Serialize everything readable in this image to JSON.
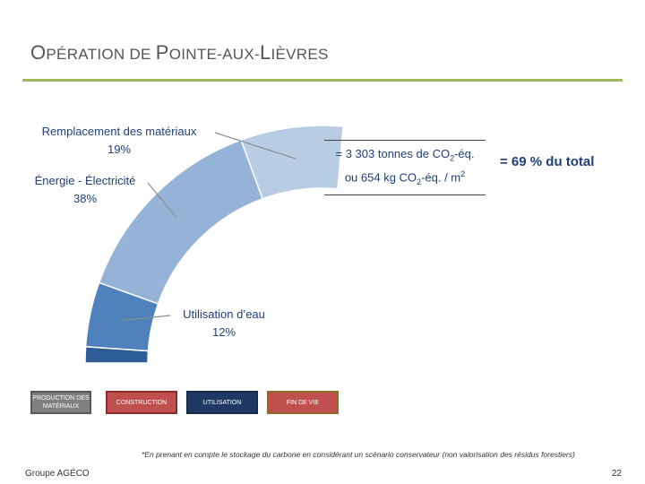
{
  "slide": {
    "title_first": "O",
    "title_rest_1": "PÉRATION DE ",
    "title_p": "P",
    "title_rest_2": "OINTE-AUX-",
    "title_l": "L",
    "title_rest_3": "IÈVRES"
  },
  "colors": {
    "accent_rule": "#9bbb59",
    "label_text": "#1f3f7a"
  },
  "chart_data": {
    "type": "donut-arc",
    "segments": [
      {
        "name": "Remplacement des  matériaux",
        "value": 19,
        "label": "19%",
        "color": "#b8cce4"
      },
      {
        "name": "Énergie - Électricité",
        "value": 38,
        "label": "38%",
        "color": "#95b3d7"
      },
      {
        "name": "Utilisation d’eau",
        "value": 12,
        "label": "12%",
        "color": "#4f81bd"
      },
      {
        "name": "",
        "value": 3,
        "label": "",
        "color": "#2e5c96"
      }
    ]
  },
  "total_box": {
    "line1_prefix": "= 3 303 tonnes de CO",
    "line1_sub": "2",
    "line1_suffix": "-éq.",
    "line2_prefix": "ou 654 kg CO",
    "line2_sub": "2",
    "line2_mid": "-éq. / m",
    "line2_sup": "2",
    "share": "= 69 % du total"
  },
  "phases": [
    {
      "label": "PRODUCTION DES MATÉRIAUX",
      "bg": "#7f7f7f",
      "border": "#595959"
    },
    {
      "label": "CONSTRUCTION",
      "bg": "#c0504d",
      "border": "#8b2d2a"
    },
    {
      "label": "UTILISATION",
      "bg": "#1f3864",
      "border": "#162a4a"
    },
    {
      "label": "FIN DE VIE",
      "bg": "#c0504d",
      "border": "#8b6a2a"
    }
  ],
  "footnote": "*En prenant en compte le stockage du carbone en considérant un scénario conservateur (non valorisation des résidus forestiers)",
  "footer": {
    "left": "Groupe AGÉCO",
    "right": "22"
  }
}
